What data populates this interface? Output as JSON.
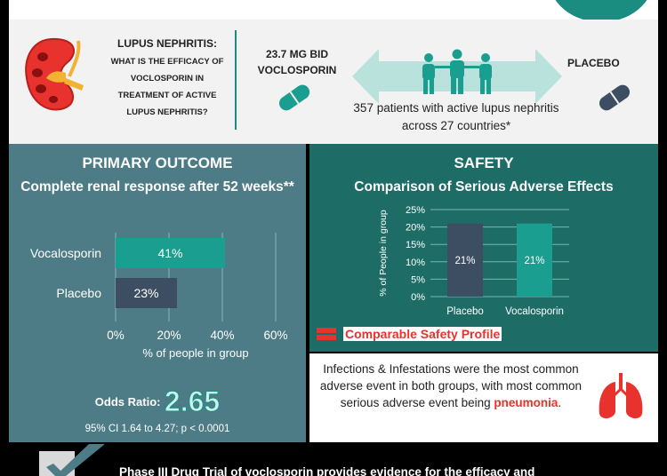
{
  "header": {
    "question_title": "LUPUS NEPHRITIS:",
    "question_body": "WHAT IS THE EFFICACY OF VOCLOSPORIN IN TREATMENT OF ACTIVE LUPUS NEPHRITIS?",
    "drug_label": "23.7 MG BID VOCLOSPORIN",
    "placebo_label": "PLACEBO",
    "patients_text": "357 patients with active lupus nephritis across 27 countries*"
  },
  "primary": {
    "title": "PRIMARY OUTCOME",
    "subtitle": "Complete renal response after 52 weeks**",
    "odds_label": "Odds Ratio:",
    "odds_value": "2.65",
    "ci_text": "95% CI 1.64 to 4.27; p < 0.0001"
  },
  "safety": {
    "title": "SAFETY",
    "subtitle": "Comparison of Serious Adverse Effects",
    "comparable_text": "Comparable Safety Profile",
    "infections_text_before": "Infections & Infestations were the most common adverse event in both groups, with most common serious adverse event being ",
    "infections_highlight": "pneumonia",
    "infections_text_after": "."
  },
  "footer": {
    "text": "Phase III Drug Trial of voclosporin provides evidence for the efficacy and"
  },
  "colors": {
    "teal": "#1a9e8f",
    "slate": "#3d4e63",
    "dark_teal_panel": "#1d6d66",
    "blue_grey_panel": "#4d7c87",
    "red": "#e8322e"
  },
  "chart_data": [
    {
      "type": "bar",
      "orientation": "horizontal",
      "categories": [
        "Vocalosporin",
        "Placebo"
      ],
      "values": [
        41,
        23
      ],
      "value_labels": [
        "41%",
        "23%"
      ],
      "xlabel": "% of people in group",
      "xticks": [
        "0%",
        "20%",
        "40%",
        "60%"
      ],
      "xlim": [
        0,
        60
      ],
      "grid": true
    },
    {
      "type": "bar",
      "orientation": "vertical",
      "categories": [
        "Placebo",
        "Vocalosporin"
      ],
      "values": [
        21,
        21
      ],
      "value_labels": [
        "21%",
        "21%"
      ],
      "ylabel": "% of People in group",
      "yticks": [
        "0%",
        "5%",
        "10%",
        "15%",
        "20%",
        "25%"
      ],
      "ylim": [
        0,
        25
      ],
      "grid": true
    }
  ]
}
